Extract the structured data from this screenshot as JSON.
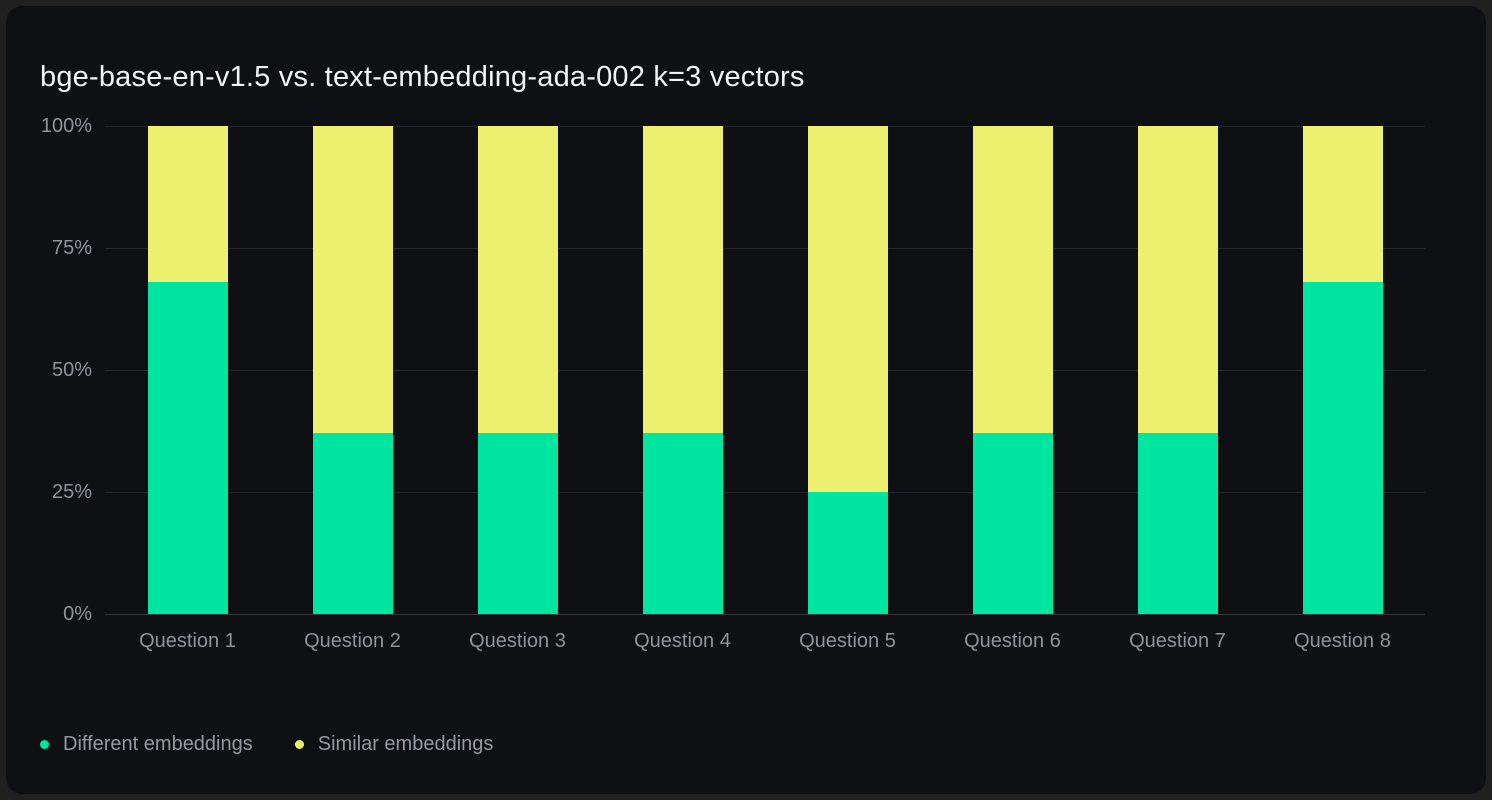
{
  "colors": {
    "page_bg": "#202020",
    "card_bg": "#0f1013",
    "title_text": "#f2f3f5",
    "axis_text": "#8f939b",
    "legend_text": "#949aa2",
    "gridline": "#26272b",
    "axis_line": "#37383d",
    "series_different": "#00e5a0",
    "series_similar": "#ecf06e"
  },
  "chart_data": {
    "type": "bar",
    "stacked": true,
    "title": "bge-base-en-v1.5 vs. text-embedding-ada-002 k=3 vectors",
    "categories": [
      "Question 1",
      "Question 2",
      "Question 3",
      "Question 4",
      "Question 5",
      "Question 6",
      "Question 7",
      "Question 8"
    ],
    "series": [
      {
        "name": "Different embeddings",
        "color": "#00e5a0",
        "values": [
          68,
          37,
          37,
          37,
          25,
          37,
          37,
          68
        ]
      },
      {
        "name": "Similar embeddings",
        "color": "#ecf06e",
        "values": [
          32,
          63,
          63,
          63,
          75,
          63,
          63,
          32
        ]
      }
    ],
    "unit": "%",
    "ylim": [
      0,
      100
    ],
    "y_ticks": [
      "100%",
      "75%",
      "50%",
      "25%",
      "0%"
    ],
    "y_tick_positions": [
      100,
      75,
      50,
      25,
      0
    ],
    "grid": "horizontal",
    "legend_position": "bottom-left"
  },
  "legend": {
    "items": [
      {
        "label": "Different embeddings",
        "color": "#00e5a0"
      },
      {
        "label": "Similar embeddings",
        "color": "#ecf06e"
      }
    ]
  }
}
